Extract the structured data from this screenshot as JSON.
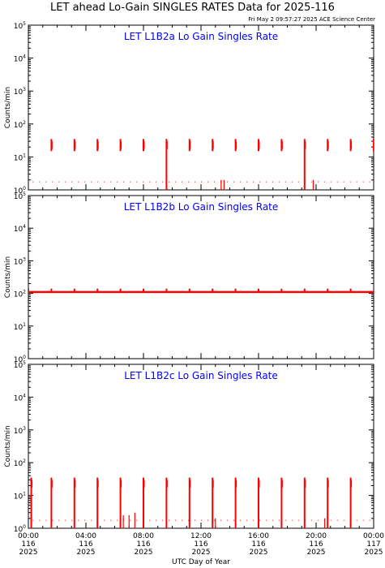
{
  "header": {
    "title": "LET ahead Lo-Gain SINGLES RATES Data for 2025-116",
    "timestamp": "Fri May  2 09:57:27 2025 ACE Science Center"
  },
  "colors": {
    "data": "#ff0000",
    "panel_title": "#0000ff",
    "axis": "#000000"
  },
  "chart_data": [
    {
      "type": "line",
      "title": "LET L1B2a Lo Gain Singles Rate",
      "ylabel": "Counts/min",
      "yscale": "log",
      "ylim": [
        1,
        100000
      ],
      "ytick_labels": [
        "10^0",
        "10^1",
        "10^2",
        "10^3",
        "10^4",
        "10^5"
      ],
      "baseline": 0.9,
      "bursts": [
        {
          "t": 1.6,
          "peak": 35,
          "low": 15
        },
        {
          "t": 3.2,
          "peak": 35,
          "low": 15
        },
        {
          "t": 4.8,
          "peak": 35,
          "low": 15
        },
        {
          "t": 6.4,
          "peak": 35,
          "low": 15
        },
        {
          "t": 8.0,
          "peak": 35,
          "low": 15
        },
        {
          "t": 9.6,
          "peak": 35,
          "low": 1
        },
        {
          "t": 11.2,
          "peak": 35,
          "low": 15
        },
        {
          "t": 12.8,
          "peak": 35,
          "low": 15
        },
        {
          "t": 14.4,
          "peak": 35,
          "low": 15
        },
        {
          "t": 16.0,
          "peak": 35,
          "low": 15
        },
        {
          "t": 17.6,
          "peak": 35,
          "low": 15
        },
        {
          "t": 19.2,
          "peak": 35,
          "low": 1
        },
        {
          "t": 20.8,
          "peak": 35,
          "low": 15
        },
        {
          "t": 22.4,
          "peak": 35,
          "low": 15
        },
        {
          "t": 24.0,
          "peak": 35,
          "low": 15
        }
      ],
      "small_spikes": [
        {
          "t": 13.4,
          "peak": 2
        },
        {
          "t": 13.6,
          "peak": 2
        },
        {
          "t": 19.8,
          "peak": 2
        }
      ]
    },
    {
      "type": "line",
      "title": "LET L1B2b Lo Gain Singles Rate",
      "ylabel": "Counts/min",
      "yscale": "log",
      "ylim": [
        1,
        100000
      ],
      "ytick_labels": [
        "10^0",
        "10^1",
        "10^2",
        "10^3",
        "10^4",
        "10^5"
      ],
      "baseline": 110,
      "bursts": [
        {
          "t": 0.0,
          "peak": 140,
          "low": 110
        },
        {
          "t": 1.6,
          "peak": 140,
          "low": 110
        },
        {
          "t": 3.2,
          "peak": 140,
          "low": 110
        },
        {
          "t": 4.8,
          "peak": 140,
          "low": 110
        },
        {
          "t": 6.4,
          "peak": 140,
          "low": 110
        },
        {
          "t": 8.0,
          "peak": 140,
          "low": 110
        },
        {
          "t": 9.6,
          "peak": 140,
          "low": 110
        },
        {
          "t": 11.2,
          "peak": 140,
          "low": 110
        },
        {
          "t": 12.8,
          "peak": 140,
          "low": 110
        },
        {
          "t": 14.4,
          "peak": 140,
          "low": 110
        },
        {
          "t": 16.0,
          "peak": 140,
          "low": 110
        },
        {
          "t": 17.6,
          "peak": 140,
          "low": 110
        },
        {
          "t": 19.2,
          "peak": 140,
          "low": 110
        },
        {
          "t": 20.8,
          "peak": 140,
          "low": 110
        },
        {
          "t": 22.4,
          "peak": 140,
          "low": 110
        }
      ],
      "small_spikes": []
    },
    {
      "type": "line",
      "title": "LET L1B2c Lo Gain Singles Rate",
      "ylabel": "Counts/min",
      "yscale": "log",
      "ylim": [
        1,
        100000
      ],
      "ytick_labels": [
        "10^0",
        "10^1",
        "10^2",
        "10^3",
        "10^4",
        "10^5"
      ],
      "baseline": 0.95,
      "bursts": [
        {
          "t": 0.2,
          "peak": 35,
          "low": 1
        },
        {
          "t": 1.6,
          "peak": 35,
          "low": 1
        },
        {
          "t": 3.2,
          "peak": 35,
          "low": 1
        },
        {
          "t": 4.8,
          "peak": 35,
          "low": 1
        },
        {
          "t": 6.4,
          "peak": 35,
          "low": 1
        },
        {
          "t": 8.0,
          "peak": 35,
          "low": 1
        },
        {
          "t": 9.6,
          "peak": 35,
          "low": 1
        },
        {
          "t": 11.2,
          "peak": 35,
          "low": 1
        },
        {
          "t": 12.8,
          "peak": 35,
          "low": 1
        },
        {
          "t": 14.4,
          "peak": 35,
          "low": 1
        },
        {
          "t": 16.0,
          "peak": 35,
          "low": 1
        },
        {
          "t": 17.6,
          "peak": 35,
          "low": 1
        },
        {
          "t": 19.2,
          "peak": 35,
          "low": 1
        },
        {
          "t": 20.8,
          "peak": 35,
          "low": 1
        },
        {
          "t": 22.4,
          "peak": 35,
          "low": 1
        }
      ],
      "small_spikes": [
        {
          "t": 6.6,
          "peak": 2.5
        },
        {
          "t": 7.0,
          "peak": 2.5
        },
        {
          "t": 7.4,
          "peak": 3
        },
        {
          "t": 13.0,
          "peak": 2
        },
        {
          "t": 20.6,
          "peak": 2
        }
      ]
    }
  ],
  "x_axis": {
    "label": "UTC Day of Year",
    "xlim": [
      0,
      24
    ],
    "major_ticks": [
      {
        "t": 0,
        "time": "00:00",
        "doy": "116",
        "year": "2025"
      },
      {
        "t": 4,
        "time": "04:00",
        "doy": "116",
        "year": "2025"
      },
      {
        "t": 8,
        "time": "08:00",
        "doy": "116",
        "year": "2025"
      },
      {
        "t": 12,
        "time": "12:00",
        "doy": "116",
        "year": "2025"
      },
      {
        "t": 16,
        "time": "16:00",
        "doy": "116",
        "year": "2025"
      },
      {
        "t": 20,
        "time": "20:00",
        "doy": "116",
        "year": "2025"
      },
      {
        "t": 24,
        "time": "00:00",
        "doy": "117",
        "year": "2025"
      }
    ]
  }
}
